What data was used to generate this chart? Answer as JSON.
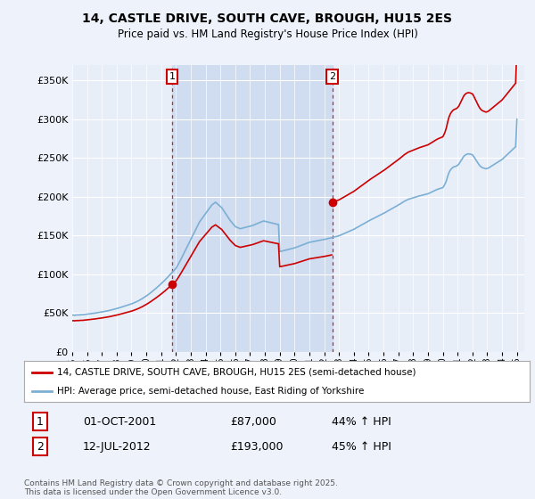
{
  "title_line1": "14, CASTLE DRIVE, SOUTH CAVE, BROUGH, HU15 2ES",
  "title_line2": "Price paid vs. HM Land Registry's House Price Index (HPI)",
  "legend_label1": "14, CASTLE DRIVE, SOUTH CAVE, BROUGH, HU15 2ES (semi-detached house)",
  "legend_label2": "HPI: Average price, semi-detached house, East Riding of Yorkshire",
  "transaction1_label": "1",
  "transaction1_date": "01-OCT-2001",
  "transaction1_price": "£87,000",
  "transaction1_hpi": "44% ↑ HPI",
  "transaction2_label": "2",
  "transaction2_date": "12-JUL-2012",
  "transaction2_price": "£193,000",
  "transaction2_hpi": "45% ↑ HPI",
  "footnote": "Contains HM Land Registry data © Crown copyright and database right 2025.\nThis data is licensed under the Open Government Licence v3.0.",
  "property_color": "#cc0000",
  "hpi_color": "#7bafd4",
  "vline_color": "#cc0000",
  "background_color": "#eef2fa",
  "plot_bg_color": "#e8eef8",
  "shade_color": "#d0dcf0",
  "ylim": [
    0,
    370000
  ],
  "ylabel_ticks": [
    0,
    50000,
    100000,
    150000,
    200000,
    250000,
    300000,
    350000
  ],
  "transaction1_x": 2001.75,
  "transaction2_x": 2012.54,
  "xmin": 1995.0,
  "xmax": 2025.5,
  "hpi_values_monthly": [
    47200,
    47300,
    47100,
    47300,
    47500,
    47400,
    47600,
    47800,
    47700,
    47900,
    48100,
    48300,
    48500,
    48600,
    48800,
    49000,
    49200,
    49500,
    49800,
    50100,
    50300,
    50600,
    50900,
    51100,
    51400,
    51700,
    52000,
    52300,
    52600,
    53000,
    53300,
    53700,
    54100,
    54500,
    54900,
    55300,
    55700,
    56200,
    56700,
    57200,
    57700,
    58200,
    58700,
    59200,
    59700,
    60200,
    60700,
    61200,
    61800,
    62400,
    63100,
    63800,
    64500,
    65300,
    66100,
    67000,
    67900,
    68900,
    69900,
    70900,
    72000,
    73100,
    74300,
    75500,
    76800,
    78100,
    79400,
    80700,
    82100,
    83500,
    84900,
    86300,
    87800,
    89300,
    90800,
    92400,
    94000,
    95700,
    97400,
    99100,
    100800,
    102500,
    104200,
    105900,
    107600,
    110300,
    113200,
    116200,
    119300,
    122500,
    125700,
    128900,
    132100,
    135300,
    138500,
    141700,
    144900,
    148100,
    151300,
    154500,
    157700,
    160900,
    164100,
    167300,
    169500,
    171700,
    173900,
    176100,
    178300,
    180500,
    182700,
    184900,
    187100,
    189300,
    190500,
    191700,
    192900,
    191500,
    190100,
    188700,
    187300,
    185900,
    183500,
    181100,
    178700,
    176300,
    173900,
    171500,
    169100,
    167200,
    165300,
    163400,
    161500,
    160800,
    160100,
    159400,
    158700,
    159100,
    159500,
    159900,
    160300,
    160700,
    161100,
    161500,
    161900,
    162400,
    162900,
    163500,
    164100,
    164800,
    165500,
    166200,
    166900,
    167500,
    168100,
    168700,
    168300,
    167900,
    167500,
    167100,
    166700,
    166300,
    165900,
    165500,
    165100,
    164800,
    164500,
    164200,
    129200,
    129600,
    130000,
    130400,
    130800,
    131200,
    131600,
    132000,
    132400,
    132800,
    133200,
    133600,
    134000,
    134600,
    135200,
    135800,
    136400,
    137000,
    137600,
    138200,
    138800,
    139400,
    140000,
    140600,
    141200,
    141500,
    141800,
    142100,
    142400,
    142700,
    143000,
    143300,
    143600,
    143900,
    144200,
    144500,
    144800,
    145200,
    145600,
    146000,
    146400,
    146800,
    147200,
    147600,
    148000,
    148400,
    148800,
    149200,
    149600,
    150300,
    151000,
    151700,
    152400,
    153100,
    153800,
    154500,
    155200,
    155900,
    156600,
    157300,
    158000,
    158900,
    159800,
    160700,
    161600,
    162500,
    163400,
    164300,
    165200,
    166100,
    167000,
    167900,
    168800,
    169600,
    170400,
    171200,
    172000,
    172800,
    173600,
    174400,
    175200,
    176000,
    176800,
    177600,
    178400,
    179300,
    180200,
    181100,
    182000,
    182900,
    183800,
    184700,
    185600,
    186500,
    187400,
    188300,
    189200,
    190200,
    191200,
    192200,
    193200,
    194200,
    195000,
    195800,
    196600,
    197100,
    197600,
    198100,
    198600,
    199100,
    199600,
    200100,
    200600,
    201000,
    201400,
    201800,
    202200,
    202600,
    203000,
    203400,
    203800,
    204500,
    205200,
    206000,
    206800,
    207600,
    208300,
    209000,
    209700,
    210200,
    210700,
    211200,
    211700,
    214000,
    217000,
    221000,
    226500,
    231000,
    234000,
    236000,
    237500,
    238500,
    239000,
    239500,
    240500,
    242000,
    244500,
    247000,
    249500,
    252000,
    253500,
    254500,
    255000,
    255200,
    255000,
    254500,
    254000,
    252000,
    249500,
    247000,
    244500,
    242000,
    240000,
    238500,
    237500,
    237000,
    236500,
    236000,
    236500,
    237000,
    238000,
    239000,
    240000,
    241000,
    242000,
    243000,
    244000,
    245000,
    246000,
    247000,
    248000,
    249500,
    251000,
    252500,
    254000,
    255500,
    257000,
    258500,
    260000,
    261500,
    263000,
    264500,
    300000
  ]
}
